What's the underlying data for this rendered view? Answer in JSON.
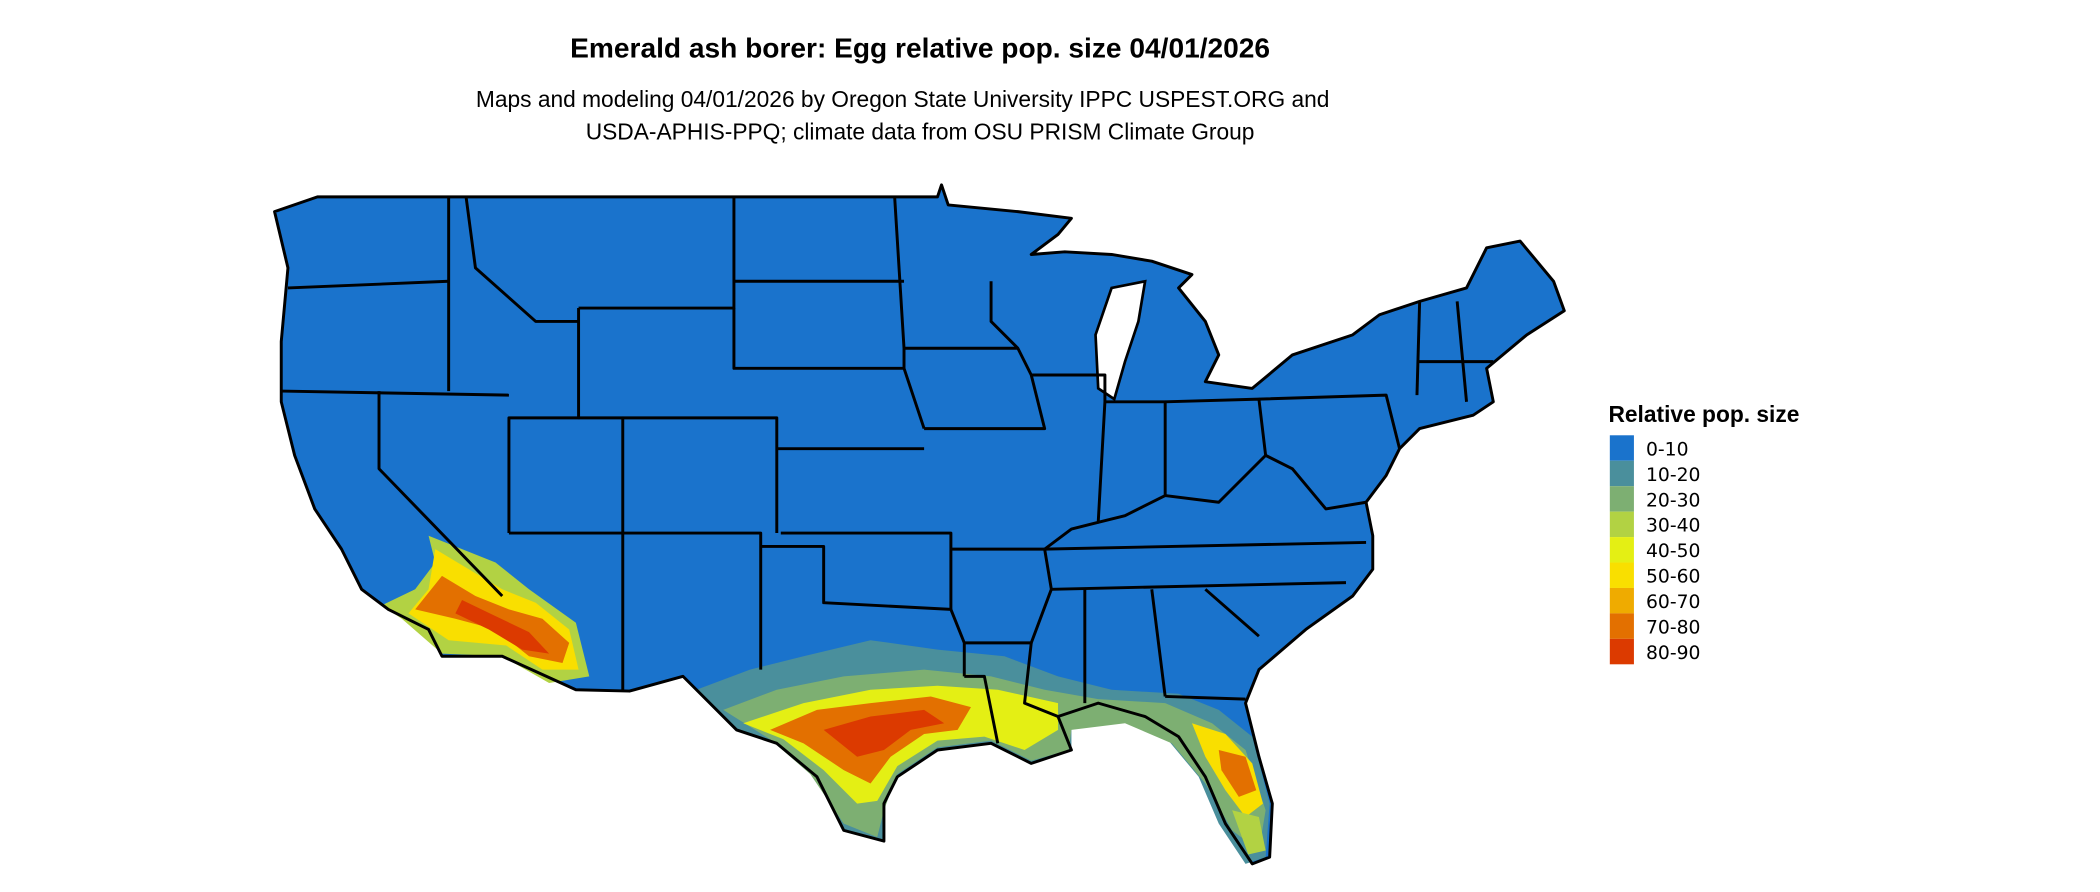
{
  "title": "Emerald ash borer: Egg relative pop. size 04/01/2026",
  "subtitle_line1": "Maps and modeling 04/01/2026 by Oregon State University IPPC USPEST.ORG and",
  "subtitle_line2": "USDA-APHIS-PPQ; climate data from OSU PRISM Climate Group",
  "legend": {
    "title": "Relative pop. size",
    "items": [
      {
        "label": "0-10",
        "color": "#1a73cc"
      },
      {
        "label": "10-20",
        "color": "#4a8f9c"
      },
      {
        "label": "20-30",
        "color": "#7daf72"
      },
      {
        "label": "30-40",
        "color": "#b2d243"
      },
      {
        "label": "40-50",
        "color": "#e4ef14"
      },
      {
        "label": "50-60",
        "color": "#f9df00"
      },
      {
        "label": "60-70",
        "color": "#efab00"
      },
      {
        "label": "70-80",
        "color": "#e37000"
      },
      {
        "label": "80-90",
        "color": "#dc3a00"
      }
    ]
  }
}
